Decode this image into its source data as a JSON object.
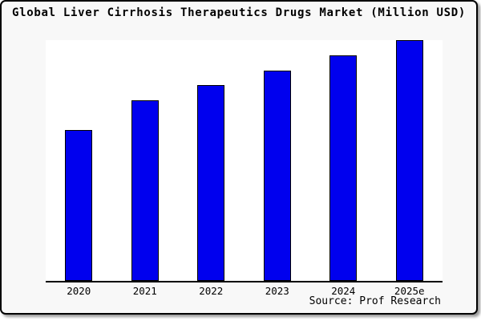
{
  "title": "Global Liver Cirrhosis Therapeutics Drugs Market (Million USD)",
  "source_text": "Source: Prof Research",
  "colors": {
    "bar_fill": "#0000ee",
    "bar_border": "#000000",
    "frame_background": "#f8f8f8",
    "plot_background": "#ffffff",
    "axis_line": "#000000",
    "frame_border": "#000000",
    "shadow": "#9a9a9a",
    "text": "#000000"
  },
  "chart_data": {
    "type": "bar",
    "categories": [
      "2020",
      "2021",
      "2022",
      "2023",
      "2024",
      "2025e"
    ],
    "values": [
      62.8,
      75.1,
      81.4,
      87.4,
      93.6,
      100.0
    ],
    "title": "Global Liver Cirrhosis Therapeutics Drugs Market (Million USD)",
    "xlabel": "",
    "ylabel": "",
    "ylim": [
      0,
      100
    ],
    "grid": false,
    "legend": false,
    "y_axis_labels_visible": false,
    "values_note": "No y-axis ticks, gridlines, or data labels are shown in the image; values are relative bar heights estimated from pixels, normalized so 2025e = 100."
  }
}
